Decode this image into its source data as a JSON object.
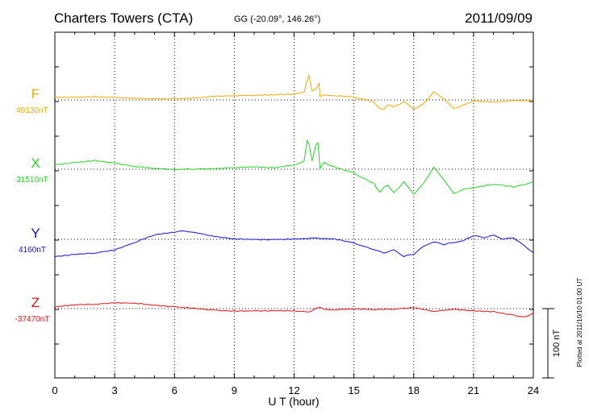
{
  "header": {
    "station": "Charters Towers (CTA)",
    "coords": "GG (-20.09°, 146.26°)",
    "date": "2011/09/09"
  },
  "footer_note": "Plotted at 2011/10/10 01:00 UT",
  "chart_data": {
    "type": "line",
    "title": "Charters Towers (CTA)",
    "xlabel": "U T (hour)",
    "xlim": [
      0,
      24
    ],
    "xticks": [
      "0",
      "3",
      "6",
      "9",
      "12",
      "15",
      "18",
      "21",
      "24"
    ],
    "grid": true,
    "scale_bar": {
      "label": "100 nT",
      "value_nT": 100
    },
    "series": [
      {
        "name": "F",
        "baseline_label": "49130nT",
        "baseline_nT": 49130,
        "color": "#f0a800",
        "points": [
          [
            0,
            49134
          ],
          [
            1,
            49134
          ],
          [
            2,
            49135
          ],
          [
            3,
            49134
          ],
          [
            4,
            49133
          ],
          [
            5,
            49132
          ],
          [
            6,
            49132
          ],
          [
            7,
            49133
          ],
          [
            8,
            49135
          ],
          [
            9,
            49136
          ],
          [
            10,
            49136
          ],
          [
            11,
            49137
          ],
          [
            12,
            49138
          ],
          [
            12.5,
            49141
          ],
          [
            12.65,
            49158
          ],
          [
            12.75,
            49165
          ],
          [
            12.9,
            49143
          ],
          [
            13.1,
            49146
          ],
          [
            13.25,
            49154
          ],
          [
            13.3,
            49135
          ],
          [
            13.5,
            49137
          ],
          [
            14,
            49136
          ],
          [
            15,
            49134
          ],
          [
            15.5,
            49131
          ],
          [
            16,
            49127
          ],
          [
            16.3,
            49118
          ],
          [
            16.5,
            49116
          ],
          [
            16.7,
            49123
          ],
          [
            17,
            49120
          ],
          [
            17.5,
            49128
          ],
          [
            18,
            49117
          ],
          [
            18.5,
            49125
          ],
          [
            19,
            49142
          ],
          [
            19.5,
            49132
          ],
          [
            20,
            49118
          ],
          [
            20.5,
            49123
          ],
          [
            21,
            49129
          ],
          [
            22,
            49127
          ],
          [
            23,
            49129
          ],
          [
            24,
            49129
          ]
        ]
      },
      {
        "name": "X",
        "baseline_label": "31510nT",
        "baseline_nT": 31510,
        "color": "#22d522",
        "points": [
          [
            0,
            31517
          ],
          [
            1,
            31520
          ],
          [
            2,
            31523
          ],
          [
            3,
            31519
          ],
          [
            4,
            31514
          ],
          [
            5,
            31511
          ],
          [
            6,
            31509
          ],
          [
            7,
            31510
          ],
          [
            8,
            31510
          ],
          [
            9,
            31512
          ],
          [
            10,
            31513
          ],
          [
            11,
            31512
          ],
          [
            12,
            31516
          ],
          [
            12.5,
            31522
          ],
          [
            12.65,
            31551
          ],
          [
            12.75,
            31546
          ],
          [
            12.9,
            31522
          ],
          [
            13.1,
            31546
          ],
          [
            13.2,
            31548
          ],
          [
            13.3,
            31511
          ],
          [
            13.5,
            31520
          ],
          [
            14,
            31514
          ],
          [
            15,
            31505
          ],
          [
            15.5,
            31497
          ],
          [
            16,
            31490
          ],
          [
            16.3,
            31477
          ],
          [
            16.5,
            31484
          ],
          [
            16.7,
            31487
          ],
          [
            17,
            31476
          ],
          [
            17.5,
            31492
          ],
          [
            18,
            31474
          ],
          [
            18.5,
            31490
          ],
          [
            19,
            31513
          ],
          [
            19.5,
            31495
          ],
          [
            20,
            31475
          ],
          [
            20.5,
            31481
          ],
          [
            21,
            31483
          ],
          [
            22,
            31488
          ],
          [
            23,
            31484
          ],
          [
            23.5,
            31487
          ],
          [
            24,
            31492
          ]
        ]
      },
      {
        "name": "Y",
        "baseline_label": "4160nT",
        "baseline_nT": 4160,
        "color": "#1010d8",
        "points": [
          [
            0,
            4135
          ],
          [
            1,
            4138
          ],
          [
            2,
            4140
          ],
          [
            3,
            4144
          ],
          [
            4,
            4155
          ],
          [
            5,
            4166
          ],
          [
            6,
            4170
          ],
          [
            6.5,
            4172
          ],
          [
            7,
            4170
          ],
          [
            8,
            4164
          ],
          [
            9,
            4161
          ],
          [
            10,
            4160
          ],
          [
            11,
            4160
          ],
          [
            12,
            4161
          ],
          [
            13,
            4162
          ],
          [
            14,
            4161
          ],
          [
            15,
            4155
          ],
          [
            15.5,
            4150
          ],
          [
            16,
            4145
          ],
          [
            16.5,
            4140
          ],
          [
            17,
            4145
          ],
          [
            17.5,
            4135
          ],
          [
            18,
            4138
          ],
          [
            18.5,
            4150
          ],
          [
            19,
            4156
          ],
          [
            19.5,
            4152
          ],
          [
            20,
            4155
          ],
          [
            20.5,
            4158
          ],
          [
            21,
            4165
          ],
          [
            21.5,
            4162
          ],
          [
            22,
            4166
          ],
          [
            22.5,
            4160
          ],
          [
            23,
            4162
          ],
          [
            23.5,
            4152
          ],
          [
            24,
            4141
          ]
        ]
      },
      {
        "name": "Z",
        "baseline_label": "-37470nT",
        "baseline_nT": -37470,
        "color": "#e01010",
        "points": [
          [
            0,
            -37468
          ],
          [
            1,
            -37465
          ],
          [
            2,
            -37464
          ],
          [
            3,
            -37462
          ],
          [
            4,
            -37462
          ],
          [
            5,
            -37465
          ],
          [
            6,
            -37467
          ],
          [
            7,
            -37469
          ],
          [
            8,
            -37472
          ],
          [
            9,
            -37473
          ],
          [
            10,
            -37473
          ],
          [
            11,
            -37473
          ],
          [
            12,
            -37473
          ],
          [
            12.7,
            -37475
          ],
          [
            13,
            -37471
          ],
          [
            13.3,
            -37468
          ],
          [
            13.5,
            -37471
          ],
          [
            14,
            -37472
          ],
          [
            15,
            -37471
          ],
          [
            16,
            -37472
          ],
          [
            17,
            -37471
          ],
          [
            18,
            -37469
          ],
          [
            19,
            -37474
          ],
          [
            20,
            -37471
          ],
          [
            21,
            -37473
          ],
          [
            22,
            -37474
          ],
          [
            23,
            -37479
          ],
          [
            23.5,
            -37482
          ],
          [
            24,
            -37476
          ]
        ]
      }
    ]
  }
}
